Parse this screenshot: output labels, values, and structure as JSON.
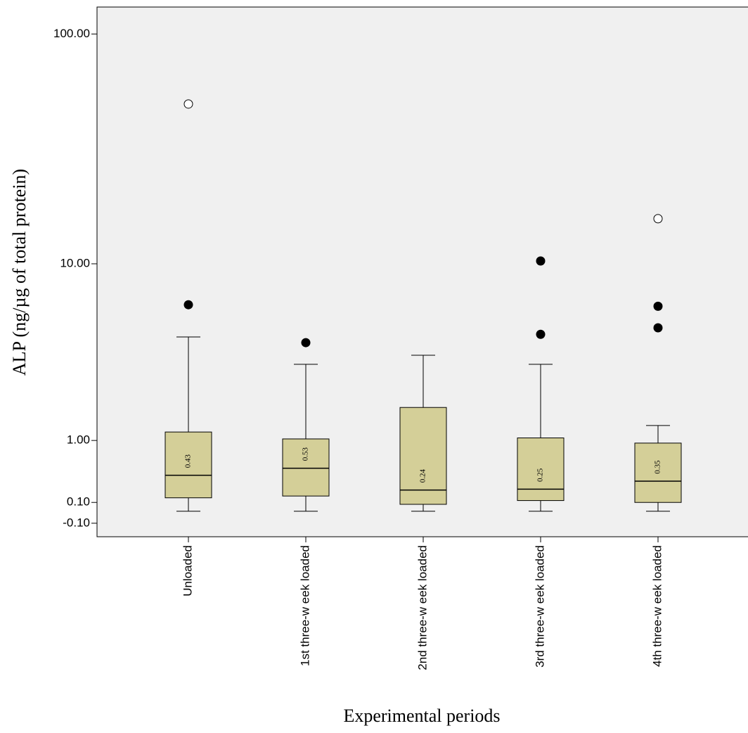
{
  "chart_data": {
    "type": "box",
    "ylabel": "ALP (ng/µg of total protein)",
    "xlabel": "Experimental periods",
    "categories": [
      "Unloaded",
      "1st three-w eek loaded",
      "2nd three-w eek loaded",
      "3rd three-w eek loaded",
      "4th three-w eek loaded"
    ],
    "boxes": [
      {
        "min": 0.01,
        "q1": 0.15,
        "median": 0.43,
        "q3": 1.17,
        "max": 4.43,
        "outliers": [
          6.41
        ],
        "extremes": [
          50.4
        ]
      },
      {
        "min": 0.01,
        "q1": 0.17,
        "median": 0.53,
        "q3": 1.03,
        "max": 3.17,
        "outliers": [
          4.14
        ],
        "extremes": []
      },
      {
        "min": 0.01,
        "q1": 0.08,
        "median": 0.24,
        "q3": 1.75,
        "max": 3.55,
        "outliers": [],
        "extremes": []
      },
      {
        "min": 0.01,
        "q1": 0.12,
        "median": 0.25,
        "q3": 1.05,
        "max": 3.17,
        "outliers": [
          10.3,
          4.57
        ],
        "extremes": []
      },
      {
        "min": 0.01,
        "q1": 0.1,
        "median": 0.35,
        "q3": 0.95,
        "max": 1.31,
        "outliers": [
          6.3,
          4.93
        ],
        "extremes": [
          16.0
        ]
      }
    ],
    "color": "#d4cf98",
    "yscale": "safe-log",
    "ylim": [
      -0.21,
      130
    ],
    "yticks": [
      {
        "value": 100,
        "label": "100.00"
      },
      {
        "value": 10,
        "label": "10.00"
      },
      {
        "value": 1,
        "label": "1.00"
      },
      {
        "value": 0.1,
        "label": "0.10"
      },
      {
        "value": -0.1,
        "label": "-0.10"
      }
    ]
  }
}
